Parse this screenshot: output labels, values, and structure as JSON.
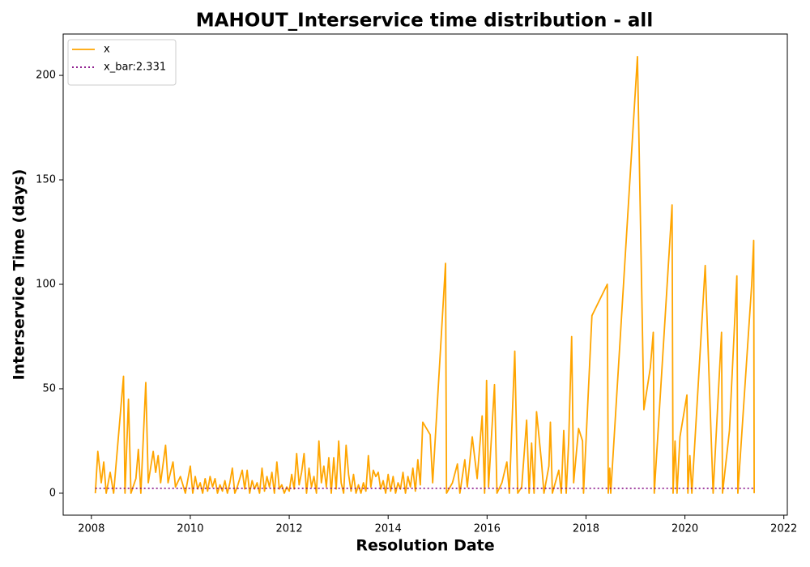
{
  "chart_data": {
    "type": "line",
    "title": "MAHOUT_Interservice time distribution - all",
    "x_label": "Resolution Date",
    "y_label": "Interservice Time (days)",
    "xlim": [
      2007.43,
      2022.07
    ],
    "xticks": [
      2008,
      2010,
      2012,
      2014,
      2016,
      2018,
      2020,
      2022
    ],
    "ylim": [
      -10.5,
      219.8
    ],
    "yticks": [
      0,
      50,
      100,
      150,
      200
    ],
    "legend": "upper left",
    "series": [
      {
        "name": "x",
        "color": "#ffa500",
        "linestyle": "solid",
        "x": [
          2008.08,
          2008.13,
          2008.2,
          2008.25,
          2008.3,
          2008.38,
          2008.45,
          2008.55,
          2008.65,
          2008.68,
          2008.75,
          2008.8,
          2008.9,
          2008.95,
          2009.0,
          2009.1,
          2009.15,
          2009.25,
          2009.3,
          2009.35,
          2009.4,
          2009.5,
          2009.55,
          2009.65,
          2009.7,
          2009.8,
          2009.9,
          2010.0,
          2010.05,
          2010.1,
          2010.15,
          2010.2,
          2010.25,
          2010.3,
          2010.35,
          2010.4,
          2010.45,
          2010.5,
          2010.55,
          2010.6,
          2010.65,
          2010.7,
          2010.75,
          2010.8,
          2010.85,
          2010.9,
          2010.95,
          2011.0,
          2011.05,
          2011.1,
          2011.15,
          2011.2,
          2011.25,
          2011.3,
          2011.35,
          2011.4,
          2011.45,
          2011.5,
          2011.55,
          2011.6,
          2011.65,
          2011.7,
          2011.75,
          2011.8,
          2011.85,
          2011.9,
          2011.95,
          2012.0,
          2012.05,
          2012.1,
          2012.15,
          2012.2,
          2012.25,
          2012.3,
          2012.35,
          2012.4,
          2012.45,
          2012.5,
          2012.55,
          2012.6,
          2012.65,
          2012.7,
          2012.75,
          2012.8,
          2012.85,
          2012.9,
          2012.95,
          2013.0,
          2013.05,
          2013.1,
          2013.15,
          2013.2,
          2013.25,
          2013.3,
          2013.35,
          2013.4,
          2013.45,
          2013.5,
          2013.55,
          2013.6,
          2013.65,
          2013.7,
          2013.75,
          2013.8,
          2013.85,
          2013.9,
          2013.95,
          2014.0,
          2014.05,
          2014.1,
          2014.15,
          2014.2,
          2014.25,
          2014.3,
          2014.35,
          2014.4,
          2014.45,
          2014.5,
          2014.55,
          2014.6,
          2014.65,
          2014.7,
          2014.85,
          2014.9,
          2015.16,
          2015.18,
          2015.3,
          2015.4,
          2015.45,
          2015.55,
          2015.6,
          2015.7,
          2015.8,
          2015.9,
          2015.95,
          2015.99,
          2016.03,
          2016.15,
          2016.2,
          2016.3,
          2016.4,
          2016.45,
          2016.56,
          2016.62,
          2016.7,
          2016.8,
          2016.85,
          2016.9,
          2016.95,
          2017.0,
          2017.1,
          2017.15,
          2017.25,
          2017.28,
          2017.32,
          2017.45,
          2017.5,
          2017.55,
          2017.6,
          2017.65,
          2017.71,
          2017.75,
          2017.85,
          2017.93,
          2017.95,
          2018.12,
          2018.43,
          2018.45,
          2018.48,
          2018.5,
          2019.04,
          2019.17,
          2019.3,
          2019.36,
          2019.38,
          2019.74,
          2019.76,
          2019.8,
          2019.84,
          2019.9,
          2020.04,
          2020.06,
          2020.1,
          2020.14,
          2020.41,
          2020.57,
          2020.74,
          2020.76,
          2020.9,
          2021.05,
          2021.07,
          2021.35,
          2021.39,
          2021.4
        ],
        "values": [
          0,
          20,
          5,
          15,
          0,
          10,
          0,
          28,
          56,
          0,
          45,
          0,
          7,
          21,
          0,
          53,
          5,
          20,
          10,
          18,
          5,
          23,
          5,
          15,
          3,
          8,
          0,
          13,
          0,
          8,
          2,
          5,
          0,
          7,
          1,
          8,
          3,
          7,
          0,
          4,
          1,
          6,
          0,
          5,
          12,
          0,
          3,
          7,
          11,
          2,
          11,
          0,
          6,
          2,
          5,
          0,
          12,
          1,
          8,
          3,
          10,
          0,
          15,
          2,
          4,
          0,
          3,
          1,
          9,
          2,
          19,
          4,
          10,
          19,
          0,
          12,
          3,
          8,
          0,
          25,
          5,
          13,
          3,
          17,
          0,
          17,
          2,
          25,
          5,
          0,
          23,
          9,
          1,
          9,
          0,
          4,
          0,
          5,
          1,
          18,
          3,
          11,
          8,
          10,
          2,
          6,
          0,
          9,
          1,
          8,
          0,
          5,
          2,
          10,
          0,
          8,
          3,
          12,
          1,
          16,
          4,
          34,
          28,
          5,
          110,
          0,
          5,
          14,
          0,
          16,
          3,
          27,
          7,
          37,
          0,
          54,
          3,
          52,
          0,
          5,
          15,
          0,
          68,
          0,
          3,
          35,
          0,
          24,
          0,
          39,
          15,
          0,
          13,
          34,
          0,
          11,
          0,
          30,
          0,
          25,
          75,
          5,
          31,
          25,
          0,
          85,
          100,
          0,
          12,
          0,
          209,
          40,
          60,
          77,
          0,
          138,
          0,
          25,
          0,
          27,
          47,
          0,
          18,
          0,
          109,
          0,
          77,
          0,
          30,
          104,
          0,
          100,
          121,
          0
        ]
      },
      {
        "name": "x_bar:2.331",
        "color": "#800080",
        "linestyle": "dotted",
        "x": [
          2008.08,
          2021.4
        ],
        "values": [
          2.331,
          2.331
        ]
      }
    ]
  }
}
